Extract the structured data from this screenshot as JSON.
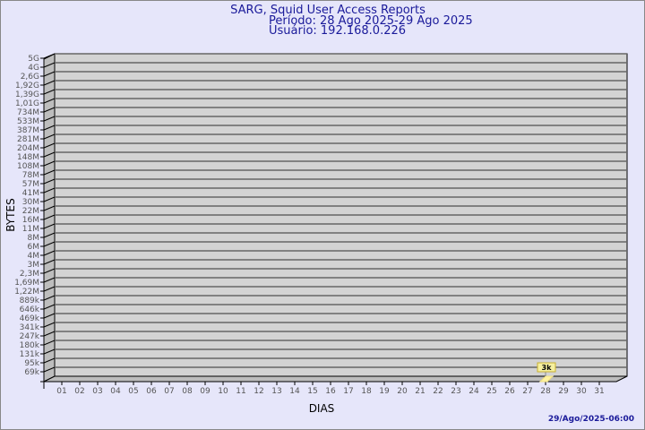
{
  "chart_data": {
    "type": "bar",
    "title": "SARG, Squid User Access Reports",
    "subtitle": [
      "Período: 28 Ago 2025-29 Ago 2025",
      "Usuário: 192.168.0.226"
    ],
    "xlabel": "DIAS",
    "ylabel": "BYTES",
    "y_scale": "log",
    "y_tick_labels": [
      "5G",
      "4G",
      "2,6G",
      "1,92G",
      "1,39G",
      "1,01G",
      "734M",
      "533M",
      "387M",
      "281M",
      "204M",
      "148M",
      "108M",
      "78M",
      "57M",
      "41M",
      "30M",
      "22M",
      "16M",
      "11M",
      "8M",
      "6M",
      "4M",
      "3M",
      "2,3M",
      "1,69M",
      "1,22M",
      "889k",
      "646k",
      "469k",
      "341k",
      "247k",
      "180k",
      "131k",
      "95k",
      "69k"
    ],
    "categories": [
      "01",
      "02",
      "03",
      "04",
      "05",
      "06",
      "07",
      "08",
      "09",
      "10",
      "11",
      "12",
      "13",
      "14",
      "15",
      "16",
      "17",
      "18",
      "19",
      "20",
      "21",
      "22",
      "23",
      "24",
      "25",
      "26",
      "27",
      "28",
      "29",
      "30",
      "31"
    ],
    "values": [
      null,
      null,
      null,
      null,
      null,
      null,
      null,
      null,
      null,
      null,
      null,
      null,
      null,
      null,
      null,
      null,
      null,
      null,
      null,
      null,
      null,
      null,
      null,
      null,
      null,
      null,
      null,
      3000,
      null,
      null,
      null
    ],
    "data_labels": {
      "28": "3k"
    },
    "grid": true,
    "colors": {
      "background": "#e6e6fa",
      "plot": "#d3d3d3",
      "bar": "#fff3a0",
      "title": "#1a1a9a"
    }
  },
  "footer": {
    "timestamp": "29/Ago/2025-06:00"
  }
}
